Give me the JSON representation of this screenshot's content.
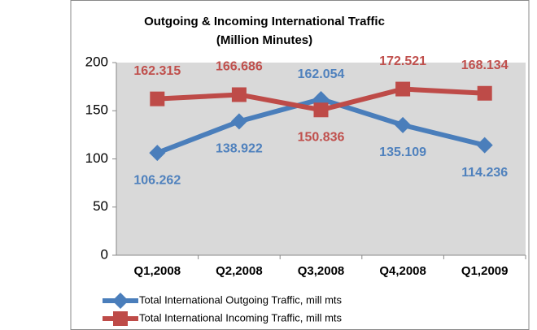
{
  "chart_data": {
    "type": "line",
    "title": "Outgoing & Incoming International Traffic",
    "subtitle": "(Million Minutes)",
    "categories": [
      "Q1,2008",
      "Q2,2008",
      "Q3,2008",
      "Q4,2008",
      "Q1,2009"
    ],
    "series": [
      {
        "name": "Total International Outgoing Traffic, mill mts",
        "color": "#4a7ebb",
        "marker": "diamond",
        "values": [
          106.262,
          138.922,
          162.054,
          135.109,
          114.236
        ]
      },
      {
        "name": "Total International Incoming Traffic, mill mts",
        "color": "#be4b48",
        "marker": "square",
        "values": [
          162.315,
          166.686,
          150.836,
          172.521,
          168.134
        ]
      }
    ],
    "ylim": [
      0,
      200
    ],
    "yticks": [
      0,
      50,
      100,
      150,
      200
    ],
    "grid": false,
    "legend": "bottom"
  }
}
